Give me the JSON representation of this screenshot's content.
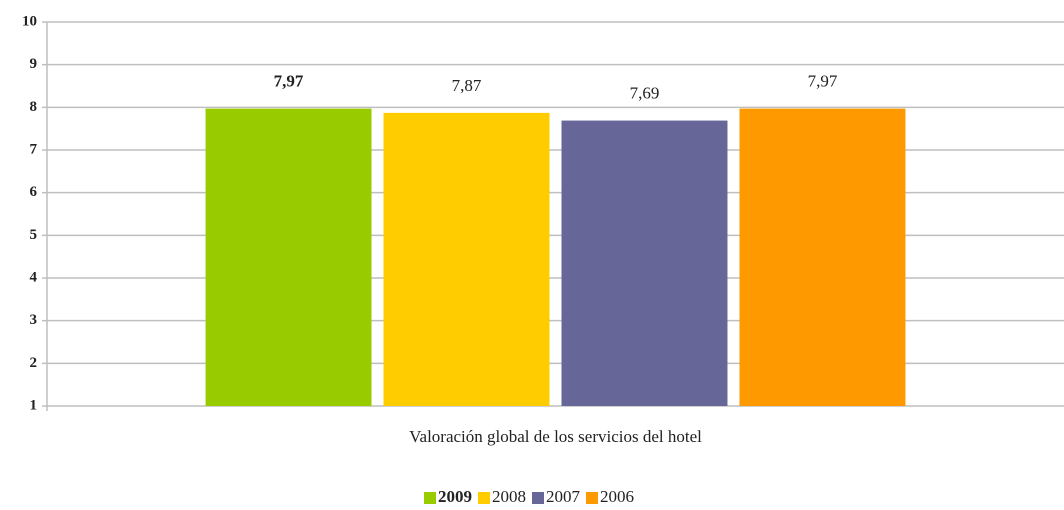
{
  "chart_data": {
    "type": "bar",
    "categories": [
      "Valoración global de los servicios del hotel"
    ],
    "series": [
      {
        "name": "2009",
        "color": "#99cc00",
        "values": [
          7.97
        ],
        "value_labels": [
          "7,97"
        ],
        "bold": true
      },
      {
        "name": "2008",
        "color": "#ffcc00",
        "values": [
          7.87
        ],
        "value_labels": [
          "7,87"
        ]
      },
      {
        "name": "2007",
        "color": "#666699",
        "values": [
          7.69
        ],
        "value_labels": [
          "7,69"
        ]
      },
      {
        "name": "2006",
        "color": "#ff9900",
        "values": [
          7.97
        ],
        "value_labels": [
          "7,97"
        ]
      }
    ],
    "ylim": [
      1,
      10
    ],
    "yticks": [
      1,
      2,
      3,
      4,
      5,
      6,
      7,
      8,
      9,
      10
    ],
    "grid": true,
    "legend": "bottom"
  }
}
